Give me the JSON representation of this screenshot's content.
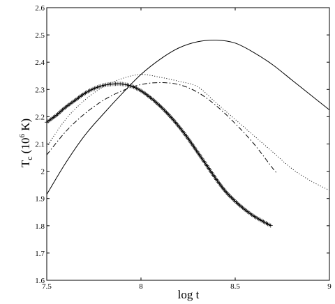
{
  "chart_data": {
    "type": "line",
    "title": "",
    "xlabel": "log t",
    "ylabel_main": "T",
    "ylabel_sub": "c",
    "ylabel_open": " (10",
    "ylabel_sup": "6",
    "ylabel_close": " K)",
    "xlim": [
      7.5,
      9
    ],
    "ylim": [
      1.6,
      2.6
    ],
    "xticks": [
      7.5,
      8,
      8.5,
      9
    ],
    "yticks": [
      1.6,
      1.7,
      1.8,
      1.9,
      2,
      2.1,
      2.2,
      2.3,
      2.4,
      2.5,
      2.6
    ],
    "xtick_labels": [
      "7.5",
      "8",
      "8.5",
      "9"
    ],
    "ytick_labels": [
      "1.6",
      "1.7",
      "1.8",
      "1.9",
      "2",
      "2.1",
      "2.2",
      "2.3",
      "2.4",
      "2.5",
      "2.6"
    ],
    "grid": false,
    "series": [
      {
        "style": "solid",
        "color": "#000000",
        "x": [
          7.5,
          7.6,
          7.7,
          7.8,
          7.9,
          8.0,
          8.1,
          8.2,
          8.3,
          8.4,
          8.5,
          8.6,
          8.7,
          8.8,
          8.9,
          9.0
        ],
        "y": [
          1.915,
          2.03,
          2.13,
          2.21,
          2.285,
          2.355,
          2.41,
          2.452,
          2.475,
          2.481,
          2.47,
          2.435,
          2.39,
          2.335,
          2.28,
          2.225
        ]
      },
      {
        "style": "dotted",
        "color": "#000000",
        "x": [
          7.5,
          7.6,
          7.7,
          7.8,
          7.9,
          8.0,
          8.1,
          8.2,
          8.3,
          8.4,
          8.5,
          8.6,
          8.7,
          8.8,
          8.9,
          9.0
        ],
        "y": [
          2.09,
          2.19,
          2.26,
          2.31,
          2.34,
          2.355,
          2.345,
          2.33,
          2.31,
          2.25,
          2.19,
          2.13,
          2.07,
          2.01,
          1.965,
          1.93
        ]
      },
      {
        "style": "dashdot",
        "color": "#000000",
        "x": [
          7.5,
          7.6,
          7.7,
          7.8,
          7.9,
          8.0,
          8.1,
          8.2,
          8.3,
          8.4,
          8.5,
          8.6,
          8.7,
          8.72
        ],
        "y": [
          2.06,
          2.145,
          2.21,
          2.26,
          2.295,
          2.318,
          2.325,
          2.318,
          2.29,
          2.24,
          2.175,
          2.1,
          2.01,
          1.995
        ]
      },
      {
        "style": "solid-plus",
        "color": "#000000",
        "x": [
          7.5,
          7.55,
          7.6,
          7.65,
          7.7,
          7.75,
          7.8,
          7.85,
          7.9,
          7.95,
          8.0,
          8.05,
          8.1,
          8.15,
          8.2,
          8.25,
          8.3,
          8.35,
          8.4,
          8.45,
          8.5,
          8.55,
          8.6,
          8.65,
          8.69
        ],
        "y": [
          2.18,
          2.205,
          2.235,
          2.26,
          2.285,
          2.303,
          2.315,
          2.32,
          2.32,
          2.312,
          2.295,
          2.27,
          2.24,
          2.205,
          2.165,
          2.12,
          2.07,
          2.02,
          1.97,
          1.925,
          1.89,
          1.86,
          1.835,
          1.815,
          1.8
        ]
      }
    ]
  }
}
